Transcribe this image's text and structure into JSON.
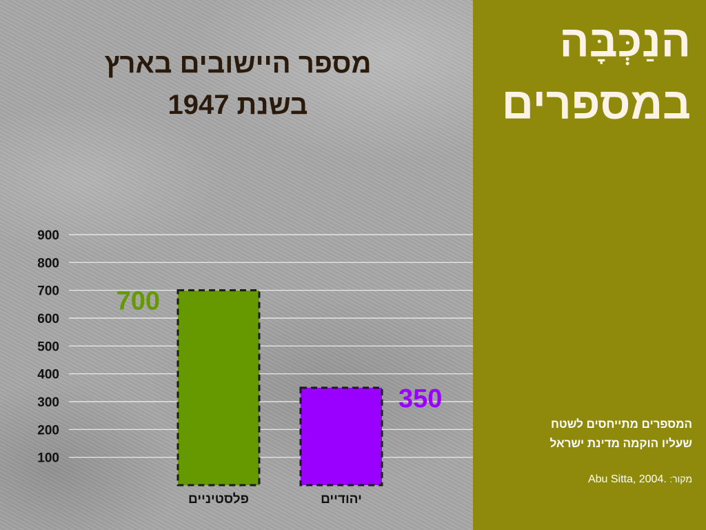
{
  "app": {
    "title_line1": "הנַכְּבָּה",
    "title_line2": "במספרים"
  },
  "note": {
    "line1": "המספרים מתייחסים לשטח",
    "line2": "שעליו הוקמה מדינת ישראל"
  },
  "source": {
    "label": "מקור:",
    "text": "Abu Sitta, 2004."
  },
  "chart_data": {
    "type": "bar",
    "title_lines": [
      "מספר היישובים בארץ",
      "בשנת 1947"
    ],
    "categories": [
      "פלסטיניים",
      "יהודיים"
    ],
    "values": [
      700,
      350
    ],
    "data_labels": [
      "700",
      "350"
    ],
    "colors": [
      "#669900",
      "#9900ff"
    ],
    "label_colors": [
      "#669900",
      "#9900ff"
    ],
    "yticks": [
      "100",
      "200",
      "300",
      "400",
      "500",
      "600",
      "700",
      "800",
      "900"
    ],
    "ylim": [
      0,
      900
    ],
    "grid": true
  }
}
